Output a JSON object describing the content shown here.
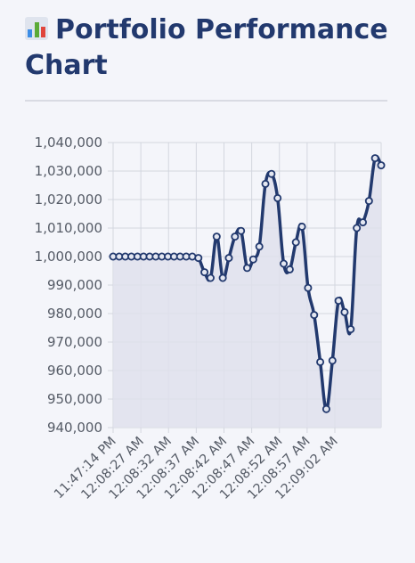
{
  "header": {
    "title": "Portfolio Performance Chart",
    "icon": "bar-chart-icon"
  },
  "chart_data": {
    "type": "area",
    "title": "",
    "xlabel": "",
    "ylabel": "",
    "ylim": [
      940000,
      1040000
    ],
    "y_ticks": [
      "940,000",
      "950,000",
      "960,000",
      "970,000",
      "980,000",
      "990,000",
      "1,000,000",
      "1,010,000",
      "1,020,000",
      "1,030,000",
      "1,040,000"
    ],
    "x_tick_labels": [
      "11:47:14 PM",
      "12:08:27 AM",
      "12:08:32 AM",
      "12:08:37 AM",
      "12:08:42 AM",
      "12:08:47 AM",
      "12:08:52 AM",
      "12:08:57 AM",
      "12:09:02 AM"
    ],
    "grid": true,
    "legend": "none",
    "colors": {
      "line": "#22396e",
      "fill": "#dfe1ec",
      "grid": "#d3d6df"
    },
    "series": [
      {
        "values": [
          1000000,
          1000000,
          1000000,
          1000000,
          1000000,
          1000000,
          1000000,
          1000000,
          1000000,
          1000000,
          1000000,
          1000000,
          1000000,
          1000000,
          999500,
          994500,
          992500,
          1007000,
          992500,
          999500,
          1007000,
          1009000,
          996000,
          999000,
          1003500,
          1025500,
          1029000,
          1020500,
          997500,
          995500,
          1005000,
          1010500,
          989000,
          979500,
          963000,
          946500,
          963500,
          984500,
          980500,
          974500,
          1010000,
          1012000,
          1019500,
          1034500,
          1032000
        ]
      }
    ]
  }
}
